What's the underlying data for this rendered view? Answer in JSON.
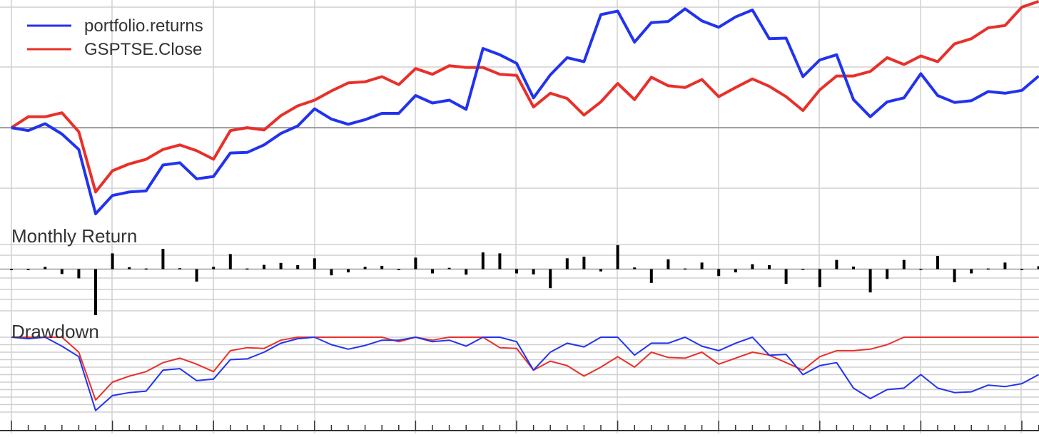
{
  "colors": {
    "portfolio": "#2233ee",
    "benchmark": "#e8302a",
    "bars": "#000000",
    "grid": "#d0d0d0",
    "zero_line": "#9a9a9a",
    "label_text": "#333333"
  },
  "chart_data": [
    {
      "type": "line",
      "panel": "cumulative-returns",
      "title": "",
      "grid": true,
      "legend_position": "top-left",
      "x": [
        0,
        1,
        2,
        3,
        4,
        5,
        6,
        7,
        8,
        9,
        10,
        11,
        12,
        13,
        14,
        15,
        16,
        17,
        18,
        19,
        20,
        21,
        22,
        23,
        24,
        25,
        26,
        27,
        28,
        29,
        30,
        31,
        32,
        33,
        34,
        35,
        36,
        37,
        38,
        39,
        40,
        41,
        42,
        43,
        44,
        45,
        46,
        47,
        48,
        49,
        50,
        51,
        52,
        53,
        54,
        55,
        56,
        57,
        58,
        59,
        60,
        61
      ],
      "ylim": [
        -1.6,
        2.1
      ],
      "series": [
        {
          "name": "portfolio.returns",
          "values": [
            0.0,
            -0.05,
            0.07,
            -0.11,
            -0.38,
            -1.5,
            -1.18,
            -1.12,
            -1.1,
            -0.65,
            -0.61,
            -0.89,
            -0.85,
            -0.44,
            -0.43,
            -0.3,
            -0.1,
            0.03,
            0.33,
            0.15,
            0.06,
            0.14,
            0.25,
            0.25,
            0.56,
            0.43,
            0.48,
            0.32,
            1.38,
            1.27,
            1.12,
            0.52,
            0.92,
            1.22,
            1.15,
            1.97,
            2.03,
            1.49,
            1.83,
            1.85,
            2.07,
            1.86,
            1.75,
            1.93,
            2.05,
            1.55,
            1.56,
            0.89,
            1.18,
            1.27,
            0.49,
            0.19,
            0.45,
            0.52,
            0.94,
            0.56,
            0.44,
            0.47,
            0.63,
            0.6,
            0.65,
            0.9
          ]
        },
        {
          "name": "GSPTSE.Close",
          "values": [
            0.0,
            0.19,
            0.19,
            0.26,
            -0.07,
            -1.12,
            -0.75,
            -0.63,
            -0.55,
            -0.38,
            -0.3,
            -0.4,
            -0.55,
            -0.05,
            0.0,
            -0.04,
            0.21,
            0.38,
            0.48,
            0.64,
            0.78,
            0.8,
            0.89,
            0.75,
            1.03,
            0.93,
            1.08,
            1.05,
            1.05,
            0.93,
            0.91,
            0.36,
            0.6,
            0.51,
            0.22,
            0.45,
            0.77,
            0.49,
            0.88,
            0.73,
            0.7,
            0.84,
            0.54,
            0.7,
            0.85,
            0.72,
            0.54,
            0.3,
            0.66,
            0.9,
            0.9,
            0.98,
            1.22,
            1.1,
            1.25,
            1.15,
            1.46,
            1.55,
            1.74,
            1.78,
            2.1,
            2.2
          ]
        }
      ]
    },
    {
      "type": "bar",
      "panel": "monthly-return",
      "title": "Monthly Return",
      "grid": true,
      "x": [
        0,
        1,
        2,
        3,
        4,
        5,
        6,
        7,
        8,
        9,
        10,
        11,
        12,
        13,
        14,
        15,
        16,
        17,
        18,
        19,
        20,
        21,
        22,
        23,
        24,
        25,
        26,
        27,
        28,
        29,
        30,
        31,
        32,
        33,
        34,
        35,
        36,
        37,
        38,
        39,
        40,
        41,
        42,
        43,
        44,
        45,
        46,
        47,
        48,
        49,
        50,
        51,
        52,
        53,
        54,
        55,
        56,
        57,
        58,
        59,
        60,
        61
      ],
      "ylim": [
        -1.4,
        0.75
      ],
      "values": [
        0.0,
        -0.03,
        0.07,
        -0.15,
        -0.28,
        -1.4,
        0.48,
        0.06,
        0.02,
        0.62,
        0.03,
        -0.38,
        0.07,
        0.46,
        0.02,
        0.13,
        0.19,
        0.12,
        0.33,
        -0.19,
        -0.1,
        0.07,
        0.1,
        0.0,
        0.35,
        -0.13,
        0.04,
        -0.17,
        0.51,
        0.48,
        -0.13,
        -0.16,
        -0.58,
        0.33,
        0.38,
        -0.07,
        0.73,
        0.05,
        -0.42,
        0.3,
        0.02,
        0.2,
        -0.21,
        -0.1,
        0.15,
        0.12,
        -0.45,
        0.01,
        -0.55,
        0.28,
        0.08,
        -0.71,
        -0.3,
        0.28,
        0.01,
        0.4,
        -0.4,
        -0.13,
        0.02,
        0.2,
        -0.02,
        0.09
      ]
    },
    {
      "type": "line",
      "panel": "drawdown",
      "title": "Drawdown",
      "grid": true,
      "x": [
        0,
        1,
        2,
        3,
        4,
        5,
        6,
        7,
        8,
        9,
        10,
        11,
        12,
        13,
        14,
        15,
        16,
        17,
        18,
        19,
        20,
        21,
        22,
        23,
        24,
        25,
        26,
        27,
        28,
        29,
        30,
        31,
        32,
        33,
        34,
        35,
        36,
        37,
        38,
        39,
        40,
        41,
        42,
        43,
        44,
        45,
        46,
        47,
        48,
        49,
        50,
        51,
        52,
        53,
        54,
        55,
        56,
        57,
        58,
        59,
        60,
        61
      ],
      "ylim": [
        -0.5,
        0.0
      ],
      "series": [
        {
          "name": "portfolio.returns",
          "values": [
            0.0,
            -0.01,
            0.0,
            -0.06,
            -0.13,
            -0.49,
            -0.39,
            -0.37,
            -0.36,
            -0.22,
            -0.21,
            -0.29,
            -0.28,
            -0.15,
            -0.145,
            -0.1,
            -0.04,
            -0.01,
            0.0,
            -0.05,
            -0.08,
            -0.055,
            -0.02,
            -0.02,
            0.0,
            -0.03,
            -0.02,
            -0.06,
            0.0,
            0.0,
            -0.03,
            -0.22,
            -0.1,
            -0.04,
            -0.065,
            0.0,
            0.0,
            -0.12,
            -0.04,
            -0.04,
            0.0,
            -0.06,
            -0.09,
            -0.04,
            0.0,
            -0.12,
            -0.115,
            -0.25,
            -0.19,
            -0.17,
            -0.34,
            -0.41,
            -0.35,
            -0.34,
            -0.25,
            -0.34,
            -0.37,
            -0.365,
            -0.32,
            -0.33,
            -0.31,
            -0.25
          ]
        },
        {
          "name": "GSPTSE.Close",
          "values": [
            0.0,
            0.0,
            0.0,
            0.0,
            -0.1,
            -0.42,
            -0.3,
            -0.26,
            -0.23,
            -0.17,
            -0.14,
            -0.18,
            -0.23,
            -0.09,
            -0.07,
            -0.075,
            -0.02,
            0.0,
            0.0,
            0.0,
            0.0,
            0.0,
            0.0,
            -0.03,
            0.0,
            -0.02,
            0.0,
            0.0,
            0.0,
            -0.07,
            -0.075,
            -0.22,
            -0.16,
            -0.19,
            -0.26,
            -0.2,
            -0.13,
            -0.2,
            -0.1,
            -0.135,
            -0.14,
            -0.1,
            -0.18,
            -0.14,
            -0.1,
            -0.12,
            -0.17,
            -0.22,
            -0.13,
            -0.09,
            -0.09,
            -0.08,
            -0.05,
            0.0,
            0.0,
            0.0,
            0.0,
            0.0,
            0.0,
            0.0,
            0.0,
            0.0
          ]
        }
      ]
    }
  ]
}
